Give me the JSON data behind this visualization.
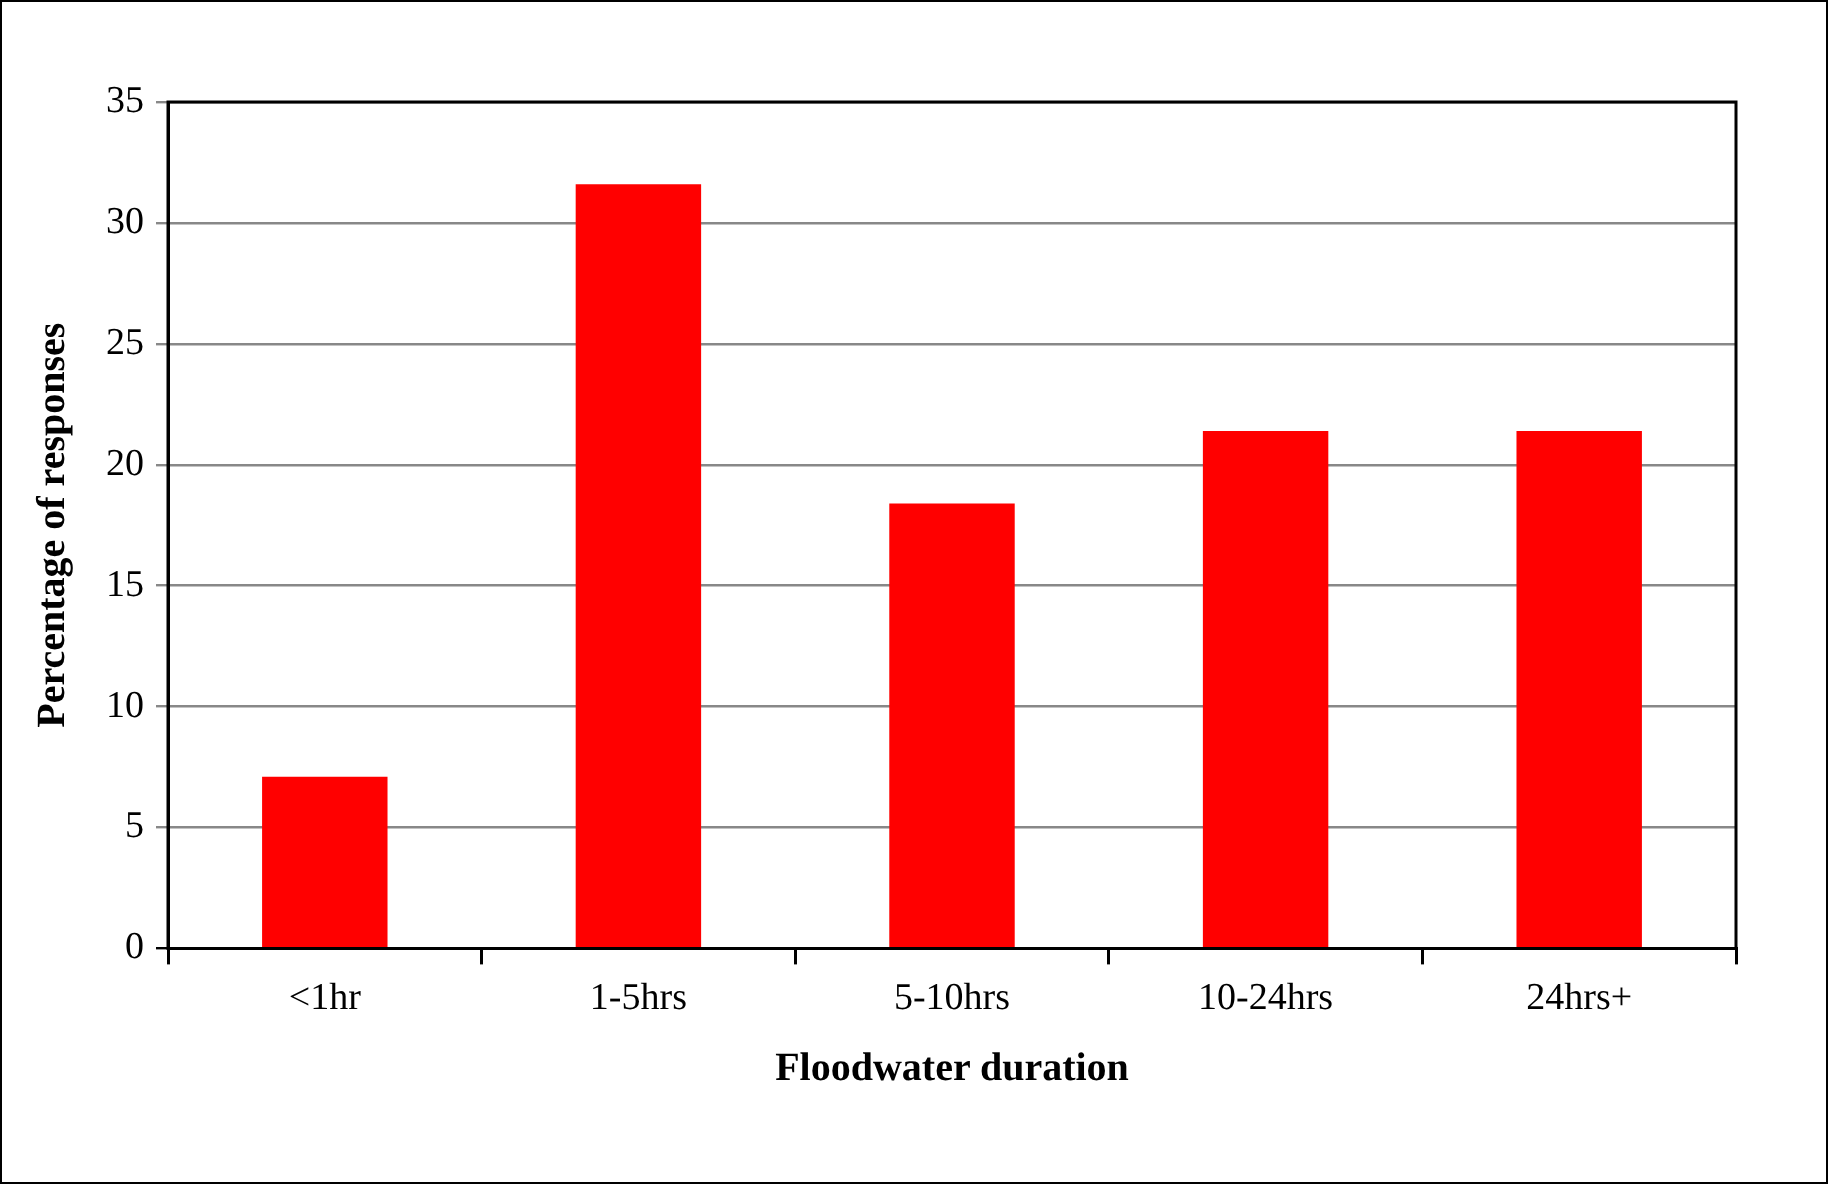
{
  "chart_data": {
    "type": "bar",
    "xlabel": "Floodwater duration",
    "ylabel": "Percentage of responses",
    "categories": [
      "<1hr",
      "1-5hrs",
      "5-10hrs",
      "10-24hrs",
      "24hrs+"
    ],
    "values": [
      7.1,
      31.6,
      18.4,
      21.4,
      21.4
    ],
    "color": "#ff0000",
    "ylim": [
      0,
      35
    ],
    "yticks": [
      0,
      5,
      10,
      15,
      20,
      25,
      30,
      35
    ],
    "grid": "y"
  }
}
